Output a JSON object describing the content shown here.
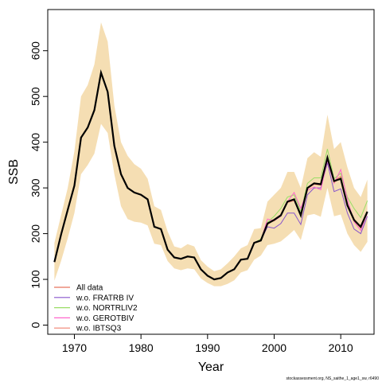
{
  "chart_data": {
    "type": "line",
    "xlabel": "Year",
    "ylabel": "SSB",
    "xlim": [
      1966,
      2015
    ],
    "ylim": [
      -20,
      690
    ],
    "x_ticks": [
      1970,
      1980,
      1990,
      2000,
      2010
    ],
    "y_ticks": [
      0,
      100,
      200,
      300,
      400,
      500,
      600
    ],
    "x": [
      1967,
      1968,
      1969,
      1970,
      1971,
      1972,
      1973,
      1974,
      1975,
      1976,
      1977,
      1978,
      1979,
      1980,
      1981,
      1982,
      1983,
      1984,
      1985,
      1986,
      1987,
      1988,
      1989,
      1990,
      1991,
      1992,
      1993,
      1994,
      1995,
      1996,
      1997,
      1998,
      1999,
      2000,
      2001,
      2002,
      2003,
      2004,
      2005,
      2006,
      2007,
      2008,
      2009,
      2010,
      2011,
      2012,
      2013,
      2014
    ],
    "confidence_band": {
      "color": "#f5deb3",
      "lower": [
        97,
        140,
        190,
        245,
        330,
        350,
        375,
        440,
        420,
        330,
        260,
        232,
        226,
        224,
        218,
        178,
        175,
        140,
        124,
        120,
        124,
        122,
        102,
        92,
        85,
        85,
        90,
        98,
        115,
        120,
        143,
        152,
        175,
        178,
        183,
        195,
        208,
        186,
        240,
        243,
        237,
        300,
        238,
        242,
        200,
        175,
        160,
        182
      ],
      "upper": [
        180,
        240,
        300,
        380,
        500,
        525,
        570,
        662,
        620,
        480,
        400,
        370,
        352,
        342,
        320,
        260,
        252,
        205,
        172,
        168,
        177,
        172,
        142,
        128,
        118,
        122,
        135,
        150,
        168,
        175,
        210,
        212,
        270,
        285,
        300,
        335,
        335,
        300,
        365,
        378,
        368,
        460,
        385,
        400,
        345,
        300,
        280,
        318
      ]
    },
    "series": [
      {
        "name": "All data",
        "color": "#e8735e",
        "values": [
          138,
          198,
          252,
          305,
          410,
          432,
          470,
          552,
          510,
          392,
          330,
          300,
          290,
          285,
          275,
          215,
          210,
          165,
          148,
          145,
          150,
          148,
          122,
          108,
          100,
          103,
          115,
          122,
          143,
          145,
          180,
          185,
          220,
          230,
          240,
          270,
          275,
          240,
          300,
          310,
          308,
          368,
          315,
          325,
          265,
          230,
          215,
          248
        ]
      },
      {
        "name": "w.o. FRATRB IV",
        "color": "#8855cc",
        "values": [
          138,
          198,
          252,
          305,
          410,
          432,
          470,
          552,
          510,
          392,
          330,
          300,
          290,
          285,
          275,
          215,
          210,
          165,
          148,
          145,
          150,
          148,
          122,
          108,
          100,
          103,
          115,
          122,
          143,
          145,
          180,
          185,
          215,
          212,
          222,
          245,
          245,
          220,
          285,
          300,
          300,
          355,
          292,
          298,
          245,
          210,
          200,
          238
        ]
      },
      {
        "name": "w.o. NORTRLIV2",
        "color": "#99dd66",
        "values": [
          138,
          198,
          252,
          305,
          410,
          432,
          470,
          552,
          510,
          392,
          330,
          300,
          290,
          285,
          275,
          215,
          210,
          165,
          148,
          145,
          150,
          148,
          122,
          108,
          100,
          103,
          115,
          122,
          143,
          145,
          180,
          188,
          225,
          238,
          255,
          280,
          285,
          248,
          310,
          322,
          322,
          385,
          320,
          332,
          280,
          255,
          235,
          272
        ]
      },
      {
        "name": "w.o. GEROTBIV",
        "color": "#ff66cc",
        "values": [
          138,
          198,
          252,
          305,
          410,
          432,
          470,
          552,
          510,
          392,
          330,
          300,
          290,
          285,
          275,
          215,
          210,
          165,
          148,
          145,
          150,
          148,
          122,
          108,
          100,
          103,
          115,
          122,
          143,
          145,
          180,
          185,
          232,
          228,
          238,
          270,
          290,
          255,
          295,
          302,
          296,
          360,
          310,
          340,
          275,
          226,
          207,
          245
        ]
      },
      {
        "name": "w.o. IBTSQ3",
        "color": "#f08070",
        "values": [
          138,
          198,
          252,
          305,
          410,
          432,
          470,
          552,
          510,
          392,
          330,
          300,
          290,
          285,
          275,
          215,
          210,
          165,
          148,
          145,
          150,
          148,
          122,
          108,
          100,
          103,
          115,
          122,
          143,
          145,
          180,
          185,
          222,
          228,
          240,
          268,
          272,
          242,
          298,
          308,
          306,
          366,
          312,
          322,
          262,
          228,
          212,
          246
        ]
      }
    ],
    "main_line": {
      "color": "#000000",
      "values": [
        138,
        198,
        252,
        305,
        410,
        432,
        470,
        552,
        510,
        392,
        330,
        300,
        290,
        285,
        275,
        215,
        210,
        165,
        148,
        145,
        150,
        148,
        122,
        108,
        100,
        103,
        115,
        122,
        143,
        145,
        180,
        185,
        222,
        230,
        240,
        270,
        275,
        240,
        300,
        310,
        308,
        366,
        315,
        320,
        262,
        230,
        215,
        248
      ]
    },
    "legend_position": "bottom-left",
    "grid": false
  },
  "footnote": "stockassessment.org, NS_saithe_1_age1_sw, r6490"
}
